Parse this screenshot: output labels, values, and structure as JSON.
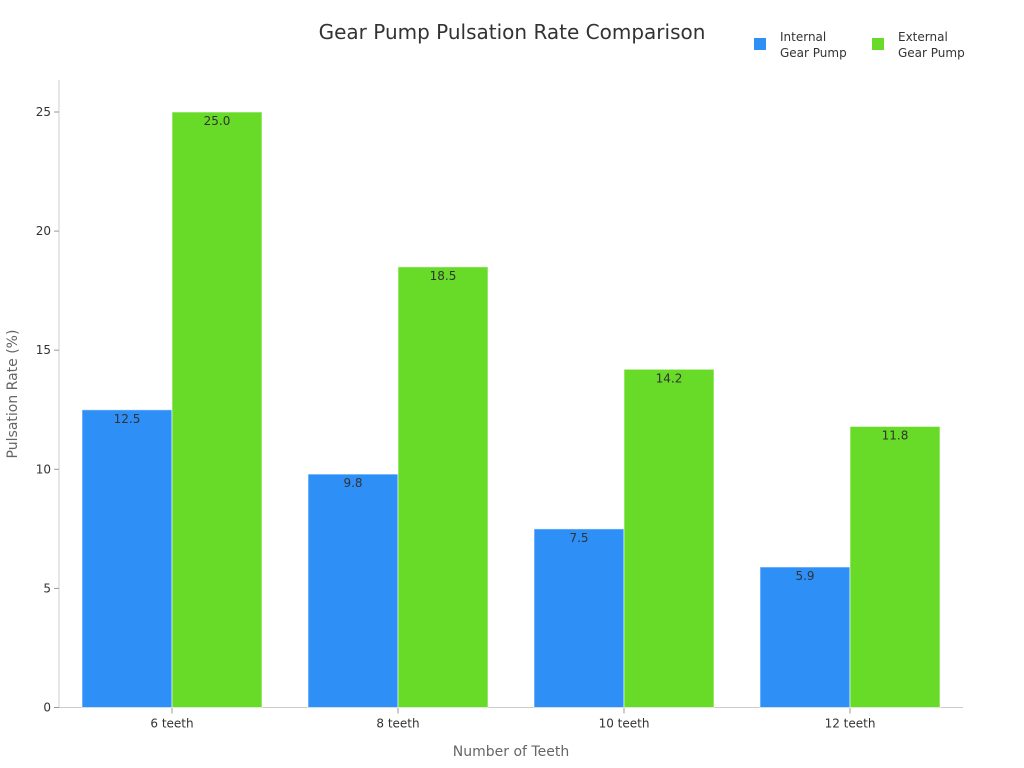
{
  "title": "Gear Pump Pulsation Rate Comparison",
  "legend": [
    {
      "line1": "Internal",
      "line2": "Gear Pump",
      "color": "#2e8ff7"
    },
    {
      "line1": "External",
      "line2": "Gear Pump",
      "color": "#67db28"
    }
  ],
  "chart_data": {
    "type": "bar",
    "title": "Gear Pump Pulsation Rate Comparison",
    "xlabel": "Number of Teeth",
    "ylabel": "Pulsation Rate (%)",
    "categories": [
      "6 teeth",
      "8 teeth",
      "10 teeth",
      "12 teeth"
    ],
    "series": [
      {
        "name": "Internal Gear Pump",
        "color": "#2e8ff7",
        "values": [
          12.5,
          9.8,
          7.5,
          5.9
        ]
      },
      {
        "name": "External Gear Pump",
        "color": "#67db28",
        "values": [
          25.0,
          18.5,
          14.2,
          11.8
        ]
      }
    ],
    "ylim": [
      0,
      26
    ],
    "yticks": [
      0,
      5,
      10,
      15,
      20,
      25
    ],
    "grid": false,
    "legend_position": "top-right"
  }
}
